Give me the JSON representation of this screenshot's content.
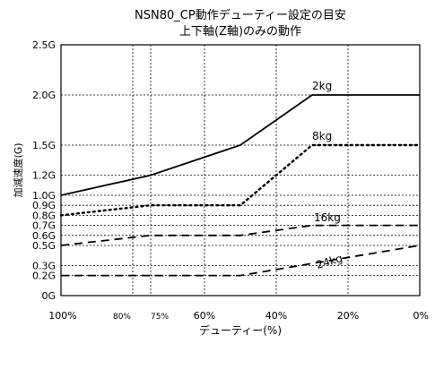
{
  "chart_data": {
    "type": "line",
    "title": "NSN80_CP動作デューティー設定の目安",
    "subtitle": "上下軸(Z軸)のみの動作",
    "xlabel": "デューティー(%)",
    "ylabel": "加減速度(G)",
    "x_ticks": [
      "100%",
      "80%",
      "75%",
      "60%",
      "40%",
      "20%",
      "0%"
    ],
    "x_tick_values": [
      100,
      80,
      75,
      60,
      40,
      20,
      0
    ],
    "y_ticks": [
      "0G",
      "0.2G",
      "0.3G",
      "0.5G",
      "0.6G",
      "0.7G",
      "0.8G",
      "0.9G",
      "1.0G",
      "1.2G",
      "1.5G",
      "2.0G",
      "2.5G"
    ],
    "y_tick_values": [
      0,
      0.2,
      0.3,
      0.5,
      0.6,
      0.7,
      0.8,
      0.9,
      1.0,
      1.2,
      1.5,
      2.0,
      2.5
    ],
    "xlim": [
      100,
      0
    ],
    "ylim": [
      0,
      2.5
    ],
    "grid": true,
    "series": [
      {
        "name": "2kg",
        "style": "solid",
        "x": [
          100,
          75,
          50,
          30,
          0
        ],
        "y": [
          1.0,
          1.2,
          1.5,
          2.0,
          2.0
        ]
      },
      {
        "name": "8kg",
        "style": "dotted",
        "x": [
          100,
          75,
          50,
          30,
          0
        ],
        "y": [
          0.8,
          0.9,
          0.9,
          1.5,
          1.5
        ]
      },
      {
        "name": "16kg",
        "style": "dashed",
        "x": [
          100,
          75,
          50,
          30,
          0
        ],
        "y": [
          0.5,
          0.6,
          0.6,
          0.7,
          0.7
        ]
      },
      {
        "name": "24kg",
        "style": "dashed",
        "x": [
          100,
          50,
          0
        ],
        "y": [
          0.2,
          0.2,
          0.5
        ]
      }
    ]
  }
}
